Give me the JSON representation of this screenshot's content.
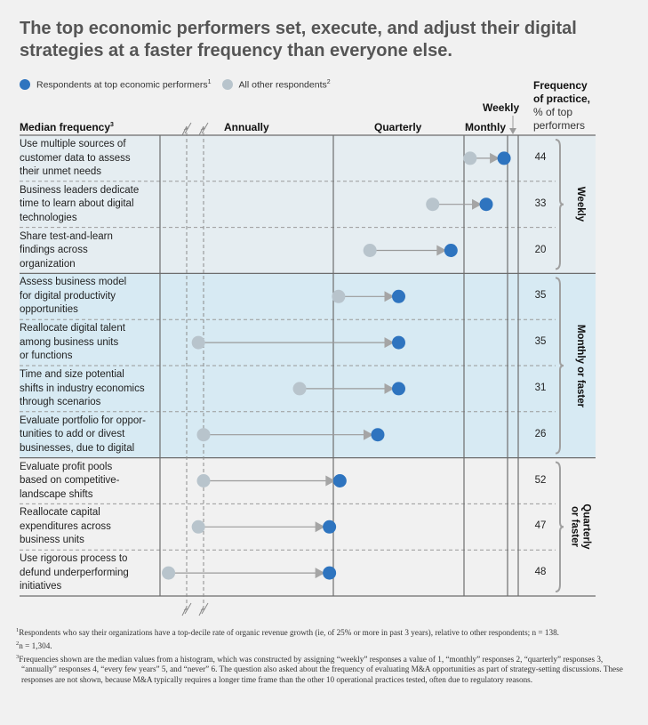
{
  "title": "The top economic performers set, execute, and adjust their digital strategies at a faster frequency than everyone else.",
  "legend": {
    "top": {
      "label": "Respondents at top economic performers",
      "footnote": "1",
      "color": "#2e74bf"
    },
    "others": {
      "label": "All other respondents",
      "footnote": "2",
      "color": "#b8c4cc"
    }
  },
  "headers": {
    "median_frequency": "Median frequency",
    "median_frequency_footnote": "3",
    "annually": "Annually",
    "quarterly": "Quarterly",
    "monthly": "Monthly",
    "weekly": "Weekly",
    "freq_practice_line1": "Frequency",
    "freq_practice_line2": "of practice,",
    "freq_practice_line3": "% of top",
    "freq_practice_line4": "performers"
  },
  "groups": [
    {
      "label": "Weekly",
      "label_line2": "",
      "background": "#e5edf1"
    },
    {
      "label": "Monthly or faster",
      "label_line2": "",
      "background": "#d7eaf3"
    },
    {
      "label": "Quarterly",
      "label_line2": "or faster",
      "background": "#f1f1f1"
    }
  ],
  "chart_data": {
    "type": "dumbbell",
    "title": "The top economic performers set, execute, and adjust their digital strategies at a faster frequency than everyone else.",
    "xlabel": "Median frequency",
    "x_scale_note": "1 = weekly, 2 = monthly, 3 = quarterly, 4 = annually; axis broken beyond annually",
    "x_ticks": [
      {
        "value": 4,
        "label": "Annually"
      },
      {
        "value": 3,
        "label": "Quarterly"
      },
      {
        "value": 2,
        "label": "Monthly"
      },
      {
        "value": 1,
        "label": "Weekly"
      }
    ],
    "series": [
      {
        "name": "All other respondents",
        "color": "#b8c4cc"
      },
      {
        "name": "Respondents at top economic performers",
        "color": "#2e74bf"
      }
    ],
    "rows": [
      {
        "label": "Use multiple sources of customer data to assess their unmet needs",
        "lines": [
          "Use multiple sources of",
          "customer data to assess",
          "their unmet needs"
        ],
        "others": 1.86,
        "top": 1.08,
        "pct": 44,
        "group": 0
      },
      {
        "label": "Business leaders dedicate time to learn about digital technologies",
        "lines": [
          "Business leaders dedicate",
          "time to learn about digital",
          "technologies"
        ],
        "others": 2.24,
        "top": 1.49,
        "pct": 33,
        "group": 0
      },
      {
        "label": "Share test-and-learn findings across organization",
        "lines": [
          "Share test-and-learn",
          "findings across",
          "organization"
        ],
        "others": 2.72,
        "top": 2.1,
        "pct": 20,
        "group": 0
      },
      {
        "label": "Assess business model for digital productivity opportunities",
        "lines": [
          "Assess business model",
          "for digital productivity",
          "opportunities"
        ],
        "others": 2.96,
        "top": 2.5,
        "pct": 35,
        "group": 1
      },
      {
        "label": "Reallocate digital talent among business units or functions",
        "lines": [
          "Reallocate digital talent",
          "among business units",
          "or functions"
        ],
        "others": 4.04,
        "top": 2.5,
        "pct": 35,
        "group": 1
      },
      {
        "label": "Time and size potential shifts in industry economics through scenarios",
        "lines": [
          "Time and size potential",
          "shifts in industry economics",
          "through scenarios"
        ],
        "others": 3.26,
        "top": 2.5,
        "pct": 31,
        "group": 1
      },
      {
        "label": "Evaluate portfolio for opportunities to add or divest businesses, due to digital",
        "lines": [
          "Evaluate portfolio for oppor-",
          "tunities to add or divest",
          "businesses, due to digital"
        ],
        "others": 4.0,
        "top": 2.66,
        "pct": 26,
        "group": 1
      },
      {
        "label": "Evaluate profit pools based on competitive-landscape shifts",
        "lines": [
          "Evaluate profit pools",
          "based on competitive-",
          "landscape shifts"
        ],
        "others": 4.0,
        "top": 2.95,
        "pct": 52,
        "group": 2
      },
      {
        "label": "Reallocate capital expenditures across business units",
        "lines": [
          "Reallocate capital",
          "expenditures across",
          "business units"
        ],
        "others": 4.04,
        "top": 3.03,
        "pct": 47,
        "group": 2
      },
      {
        "label": "Use rigorous process to defund underperforming initiatives",
        "lines": [
          "Use rigorous process to",
          "defund underperforming",
          "initiatives"
        ],
        "others": 4.27,
        "top": 3.03,
        "pct": 48,
        "group": 2
      }
    ]
  },
  "footnotes": [
    {
      "mark": "1",
      "text": "Respondents who say their organizations have a top-decile rate of organic revenue growth (ie, of 25% or more in past 3 years), relative to other respondents; n = 138."
    },
    {
      "mark": "2",
      "text": "n = 1,304."
    },
    {
      "mark": "3",
      "text": "Frequencies shown are the median values from a histogram, which was constructed by assigning “weekly” responses a value of 1, “monthly” responses 2, “quarterly” responses 3, “annually” responses 4, “every few years” 5, and “never” 6. The question also asked about the frequency of evaluating M&A opportunities as part of strategy-setting discussions. These responses are not shown, because M&A typically requires a longer time frame than the other 10 operational practices tested, often due to regulatory reasons."
    }
  ]
}
